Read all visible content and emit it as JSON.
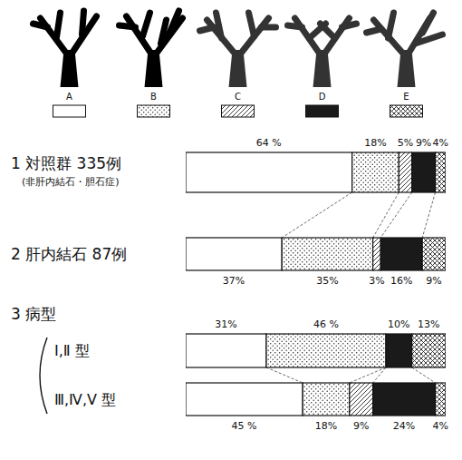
{
  "chart_data": {
    "type": "bar",
    "orientation": "horizontal",
    "stacked": true,
    "data_labels": true,
    "tick_labels": false,
    "grid": false,
    "legend": "top",
    "xlim": [
      0,
      100
    ],
    "categories": [
      "1 対照群 335例",
      "2 肝内結石 87例",
      "Ⅰ,Ⅱ 型",
      "Ⅲ,Ⅳ,Ⅴ 型"
    ],
    "annotations": [
      "(非肝内結石・胆石症)",
      "3 病型"
    ],
    "series": [
      {
        "name": "A",
        "color": "#ffffff",
        "values": [
          64,
          37,
          31,
          45
        ],
        "value_labels": [
          "64 %",
          "37%",
          "31%",
          "45 %"
        ]
      },
      {
        "name": "B",
        "color": "#ffffff",
        "values": [
          18,
          35,
          46,
          18
        ],
        "value_labels": [
          "18%",
          "35%",
          "46 %",
          "18%"
        ]
      },
      {
        "name": "C",
        "color": "#ffffff",
        "values": [
          5,
          3,
          0,
          9
        ],
        "value_labels": [
          "5%",
          "3%",
          null,
          "9%"
        ]
      },
      {
        "name": "D",
        "color": "#1a1a1a",
        "values": [
          9,
          16,
          10,
          24
        ],
        "value_labels": [
          "9%",
          "16%",
          "10%",
          "24%"
        ]
      },
      {
        "name": "E",
        "color": "#ffffff",
        "values": [
          4,
          9,
          13,
          4
        ],
        "value_labels": [
          "4%",
          "9%",
          "13%",
          "4%"
        ]
      }
    ]
  }
}
